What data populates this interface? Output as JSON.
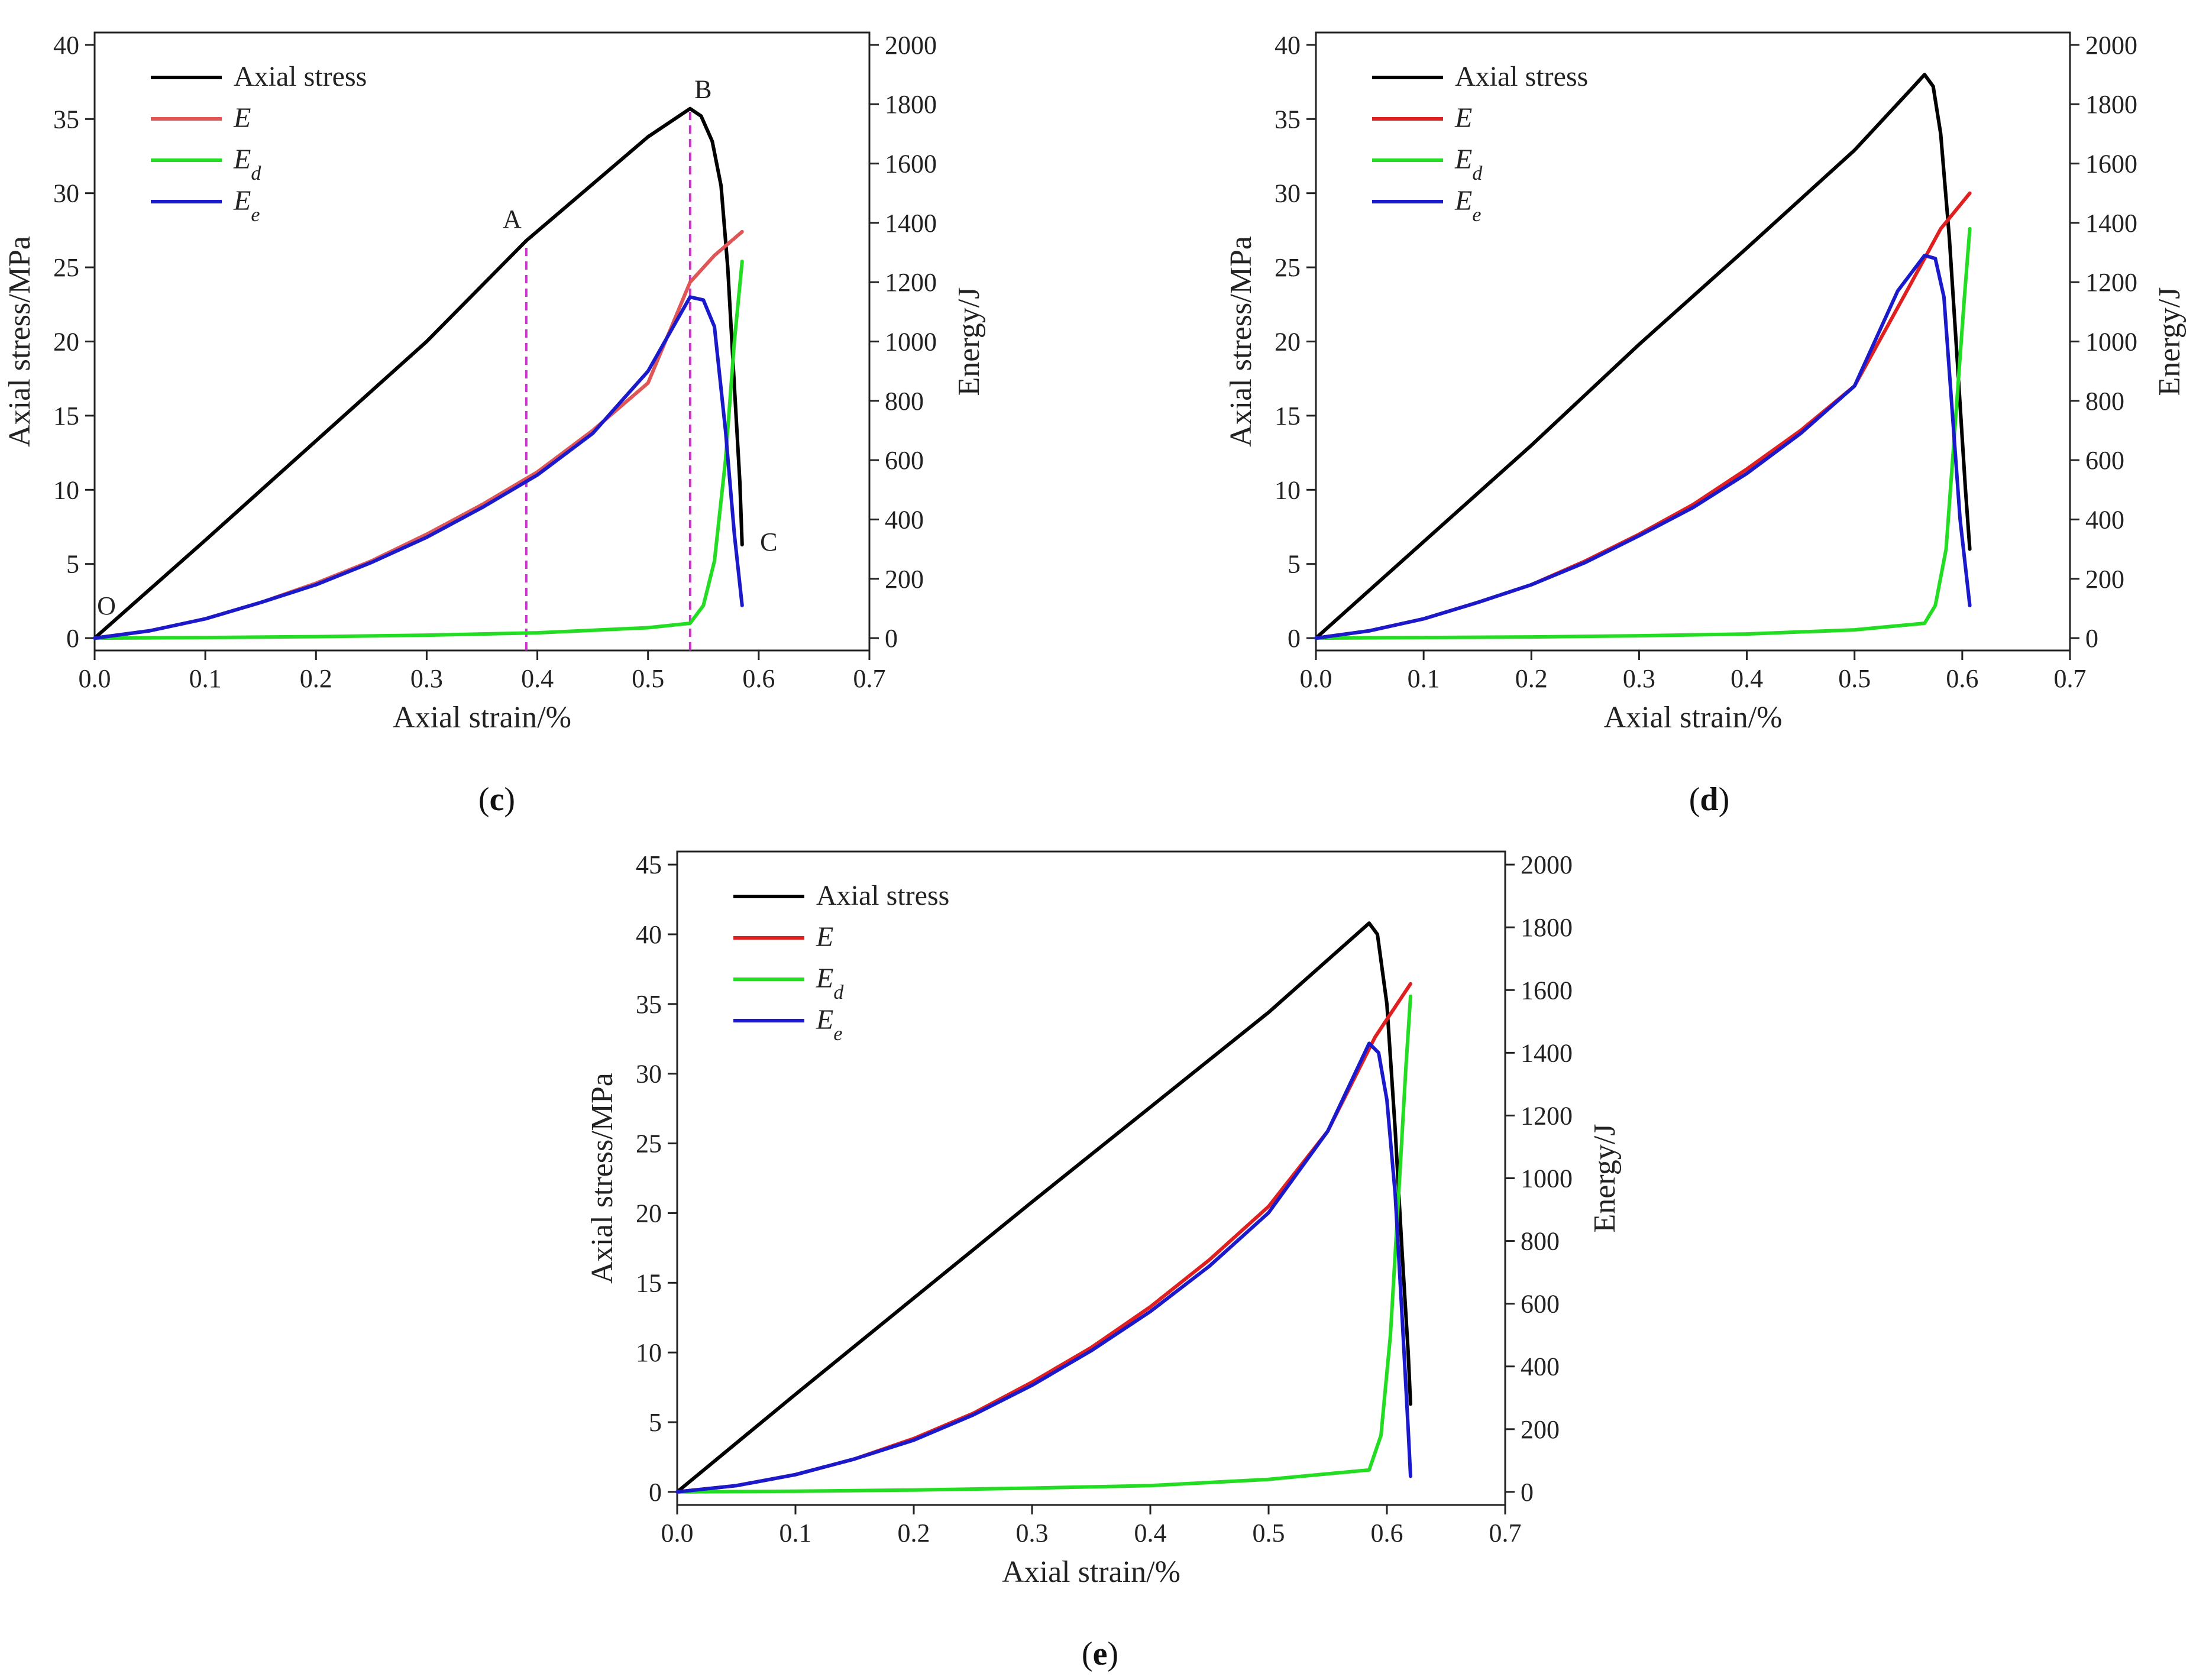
{
  "chart_data": [
    {
      "panel": "c",
      "type": "line",
      "xlabel": "Axial strain/%",
      "ylabel": "Axial stress/MPa",
      "y2label": "Energy/J",
      "xlim": [
        0.0,
        0.7
      ],
      "ylim": [
        0,
        40
      ],
      "y2lim": [
        0,
        2000
      ],
      "xticks": [
        "0.0",
        "0.1",
        "0.2",
        "0.3",
        "0.4",
        "0.5",
        "0.6",
        "0.7"
      ],
      "yticks": [
        "0",
        "5",
        "10",
        "15",
        "20",
        "25",
        "30",
        "35",
        "40"
      ],
      "y2ticks": [
        "0",
        "200",
        "400",
        "600",
        "800",
        "1000",
        "1200",
        "1400",
        "1600",
        "1800",
        "2000"
      ],
      "series": [
        {
          "name": "Axial stress",
          "sub": "",
          "axis": "left",
          "color": "#000000",
          "dash": false,
          "points": [
            [
              0,
              0
            ],
            [
              0.1,
              6.6
            ],
            [
              0.2,
              13.3
            ],
            [
              0.3,
              20.0
            ],
            [
              0.39,
              26.8
            ],
            [
              0.5,
              33.8
            ],
            [
              0.538,
              35.7
            ],
            [
              0.548,
              35.2
            ],
            [
              0.558,
              33.5
            ],
            [
              0.566,
              30.5
            ],
            [
              0.572,
              25.0
            ],
            [
              0.578,
              17.0
            ],
            [
              0.583,
              10.5
            ],
            [
              0.585,
              6.3
            ]
          ]
        },
        {
          "name": "E",
          "sub": "",
          "axis": "right",
          "color": "#e05555",
          "dash": false,
          "points": [
            [
              0,
              0
            ],
            [
              0.05,
              25
            ],
            [
              0.1,
              65
            ],
            [
              0.15,
              120
            ],
            [
              0.2,
              185
            ],
            [
              0.25,
              260
            ],
            [
              0.3,
              350
            ],
            [
              0.35,
              450
            ],
            [
              0.4,
              560
            ],
            [
              0.45,
              700
            ],
            [
              0.5,
              860
            ],
            [
              0.538,
              1200
            ],
            [
              0.56,
              1290
            ],
            [
              0.585,
              1370
            ]
          ]
        },
        {
          "name": "E",
          "sub": "d",
          "axis": "right",
          "color": "#22dd22",
          "dash": false,
          "points": [
            [
              0,
              0
            ],
            [
              0.1,
              2
            ],
            [
              0.2,
              5
            ],
            [
              0.3,
              10
            ],
            [
              0.4,
              18
            ],
            [
              0.5,
              35
            ],
            [
              0.538,
              50
            ],
            [
              0.55,
              110
            ],
            [
              0.56,
              260
            ],
            [
              0.57,
              600
            ],
            [
              0.578,
              1000
            ],
            [
              0.585,
              1270
            ]
          ]
        },
        {
          "name": "E",
          "sub": "e",
          "axis": "right",
          "color": "#1a1acc",
          "dash": false,
          "points": [
            [
              0,
              0
            ],
            [
              0.05,
              25
            ],
            [
              0.1,
              65
            ],
            [
              0.15,
              120
            ],
            [
              0.2,
              180
            ],
            [
              0.25,
              255
            ],
            [
              0.3,
              340
            ],
            [
              0.35,
              440
            ],
            [
              0.4,
              550
            ],
            [
              0.45,
              690
            ],
            [
              0.5,
              900
            ],
            [
              0.538,
              1150
            ],
            [
              0.55,
              1140
            ],
            [
              0.56,
              1050
            ],
            [
              0.57,
              700
            ],
            [
              0.578,
              350
            ],
            [
              0.585,
              110
            ]
          ]
        }
      ],
      "markers": [
        {
          "label": "A",
          "x": 0.39,
          "y": 26.8
        },
        {
          "label": "B",
          "x": 0.538,
          "y": 35.7
        }
      ],
      "annotations": [
        {
          "label": "O",
          "x": 0.0,
          "y": 0.0
        },
        {
          "label": "C",
          "x": 0.585,
          "y": 6.3
        }
      ]
    },
    {
      "panel": "d",
      "type": "line",
      "xlabel": "Axial strain/%",
      "ylabel": "Axial stress/MPa",
      "y2label": "Energy/J",
      "xlim": [
        0.0,
        0.7
      ],
      "ylim": [
        0,
        40
      ],
      "y2lim": [
        0,
        2000
      ],
      "xticks": [
        "0.0",
        "0.1",
        "0.2",
        "0.3",
        "0.4",
        "0.5",
        "0.6",
        "0.7"
      ],
      "yticks": [
        "0",
        "5",
        "10",
        "15",
        "20",
        "25",
        "30",
        "35",
        "40"
      ],
      "y2ticks": [
        "0",
        "200",
        "400",
        "600",
        "800",
        "1000",
        "1200",
        "1400",
        "1600",
        "1800",
        "2000"
      ],
      "series": [
        {
          "name": "Axial stress",
          "sub": "",
          "axis": "left",
          "color": "#000000",
          "dash": false,
          "points": [
            [
              0,
              0
            ],
            [
              0.1,
              6.5
            ],
            [
              0.2,
              13.0
            ],
            [
              0.3,
              19.8
            ],
            [
              0.4,
              26.3
            ],
            [
              0.5,
              32.9
            ],
            [
              0.555,
              37.2
            ],
            [
              0.565,
              38.0
            ],
            [
              0.573,
              37.2
            ],
            [
              0.58,
              34.0
            ],
            [
              0.588,
              27.0
            ],
            [
              0.596,
              18.0
            ],
            [
              0.603,
              10.0
            ],
            [
              0.607,
              6.0
            ]
          ]
        },
        {
          "name": "E",
          "sub": "",
          "axis": "right",
          "color": "#e02020",
          "dash": false,
          "points": [
            [
              0,
              0
            ],
            [
              0.05,
              25
            ],
            [
              0.1,
              65
            ],
            [
              0.15,
              120
            ],
            [
              0.2,
              180
            ],
            [
              0.25,
              260
            ],
            [
              0.3,
              350
            ],
            [
              0.35,
              450
            ],
            [
              0.4,
              570
            ],
            [
              0.45,
              700
            ],
            [
              0.5,
              850
            ],
            [
              0.55,
              1180
            ],
            [
              0.58,
              1380
            ],
            [
              0.607,
              1500
            ]
          ]
        },
        {
          "name": "E",
          "sub": "d",
          "axis": "right",
          "color": "#22dd22",
          "dash": false,
          "points": [
            [
              0,
              0
            ],
            [
              0.1,
              2
            ],
            [
              0.2,
              4
            ],
            [
              0.3,
              8
            ],
            [
              0.4,
              14
            ],
            [
              0.5,
              28
            ],
            [
              0.565,
              50
            ],
            [
              0.575,
              110
            ],
            [
              0.585,
              300
            ],
            [
              0.595,
              800
            ],
            [
              0.602,
              1150
            ],
            [
              0.607,
              1380
            ]
          ]
        },
        {
          "name": "E",
          "sub": "e",
          "axis": "right",
          "color": "#1a1acc",
          "dash": false,
          "points": [
            [
              0,
              0
            ],
            [
              0.05,
              25
            ],
            [
              0.1,
              65
            ],
            [
              0.15,
              120
            ],
            [
              0.2,
              180
            ],
            [
              0.25,
              255
            ],
            [
              0.3,
              345
            ],
            [
              0.35,
              440
            ],
            [
              0.4,
              555
            ],
            [
              0.45,
              690
            ],
            [
              0.5,
              850
            ],
            [
              0.54,
              1170
            ],
            [
              0.565,
              1290
            ],
            [
              0.575,
              1280
            ],
            [
              0.583,
              1150
            ],
            [
              0.59,
              800
            ],
            [
              0.598,
              400
            ],
            [
              0.607,
              110
            ]
          ]
        }
      ],
      "markers": [],
      "annotations": []
    },
    {
      "panel": "e",
      "type": "line",
      "xlabel": "Axial strain/%",
      "ylabel": "Axial stress/MPa",
      "y2label": "Energy/J",
      "xlim": [
        0.0,
        0.7
      ],
      "ylim": [
        0,
        45
      ],
      "y2lim": [
        0,
        2000
      ],
      "xticks": [
        "0.0",
        "0.1",
        "0.2",
        "0.3",
        "0.4",
        "0.5",
        "0.6",
        "0.7"
      ],
      "yticks": [
        "0",
        "5",
        "10",
        "15",
        "20",
        "25",
        "30",
        "35",
        "40",
        "45"
      ],
      "y2ticks": [
        "0",
        "200",
        "400",
        "600",
        "800",
        "1000",
        "1200",
        "1400",
        "1600",
        "1800",
        "2000"
      ],
      "series": [
        {
          "name": "Axial stress",
          "sub": "",
          "axis": "left",
          "color": "#000000",
          "dash": false,
          "points": [
            [
              0,
              0
            ],
            [
              0.1,
              7.0
            ],
            [
              0.2,
              13.9
            ],
            [
              0.3,
              20.8
            ],
            [
              0.4,
              27.6
            ],
            [
              0.5,
              34.4
            ],
            [
              0.585,
              40.8
            ],
            [
              0.592,
              40.0
            ],
            [
              0.6,
              35.0
            ],
            [
              0.607,
              26.0
            ],
            [
              0.613,
              17.0
            ],
            [
              0.618,
              10.0
            ],
            [
              0.62,
              6.3
            ]
          ]
        },
        {
          "name": "E",
          "sub": "",
          "axis": "right",
          "color": "#e02020",
          "dash": false,
          "points": [
            [
              0,
              0
            ],
            [
              0.05,
              20
            ],
            [
              0.1,
              55
            ],
            [
              0.15,
              105
            ],
            [
              0.2,
              170
            ],
            [
              0.25,
              250
            ],
            [
              0.3,
              350
            ],
            [
              0.35,
              460
            ],
            [
              0.4,
              590
            ],
            [
              0.45,
              740
            ],
            [
              0.5,
              910
            ],
            [
              0.55,
              1150
            ],
            [
              0.59,
              1450
            ],
            [
              0.62,
              1620
            ]
          ]
        },
        {
          "name": "E",
          "sub": "d",
          "axis": "right",
          "color": "#22dd22",
          "dash": false,
          "points": [
            [
              0,
              0
            ],
            [
              0.1,
              2
            ],
            [
              0.2,
              6
            ],
            [
              0.3,
              12
            ],
            [
              0.4,
              20
            ],
            [
              0.5,
              40
            ],
            [
              0.585,
              70
            ],
            [
              0.595,
              180
            ],
            [
              0.603,
              500
            ],
            [
              0.61,
              950
            ],
            [
              0.616,
              1350
            ],
            [
              0.62,
              1580
            ]
          ]
        },
        {
          "name": "E",
          "sub": "e",
          "axis": "right",
          "color": "#1a1acc",
          "dash": false,
          "points": [
            [
              0,
              0
            ],
            [
              0.05,
              20
            ],
            [
              0.1,
              55
            ],
            [
              0.15,
              105
            ],
            [
              0.2,
              165
            ],
            [
              0.25,
              245
            ],
            [
              0.3,
              340
            ],
            [
              0.35,
              450
            ],
            [
              0.4,
              575
            ],
            [
              0.45,
              720
            ],
            [
              0.5,
              890
            ],
            [
              0.55,
              1150
            ],
            [
              0.585,
              1430
            ],
            [
              0.593,
              1400
            ],
            [
              0.6,
              1250
            ],
            [
              0.607,
              950
            ],
            [
              0.613,
              550
            ],
            [
              0.618,
              200
            ],
            [
              0.62,
              50
            ]
          ]
        }
      ],
      "markers": [],
      "annotations": []
    }
  ]
}
